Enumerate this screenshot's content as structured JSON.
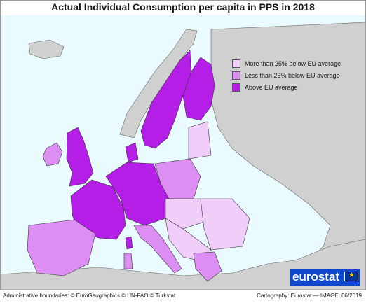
{
  "title": "Actual Individual Consumption per capita in PPS in 2018",
  "legend": {
    "items": [
      {
        "label": "More than 25% below EU average",
        "color": "#f1cdfa"
      },
      {
        "label": "Less than 25% below EU average",
        "color": "#dc8ef2"
      },
      {
        "label": "Above EU average",
        "color": "#b41ee6"
      }
    ]
  },
  "colors": {
    "sea": "#e9fbff",
    "non_eu_land": "#d0d0d0",
    "brand": "#0e47cb"
  },
  "logo": {
    "text": "eurostat"
  },
  "footer": {
    "left": "Administrative boundaries: © EuroGeographics © UN-FAO © Turkstat",
    "right": "Cartography: Eurostat — IMAGE, 06/2019"
  }
}
